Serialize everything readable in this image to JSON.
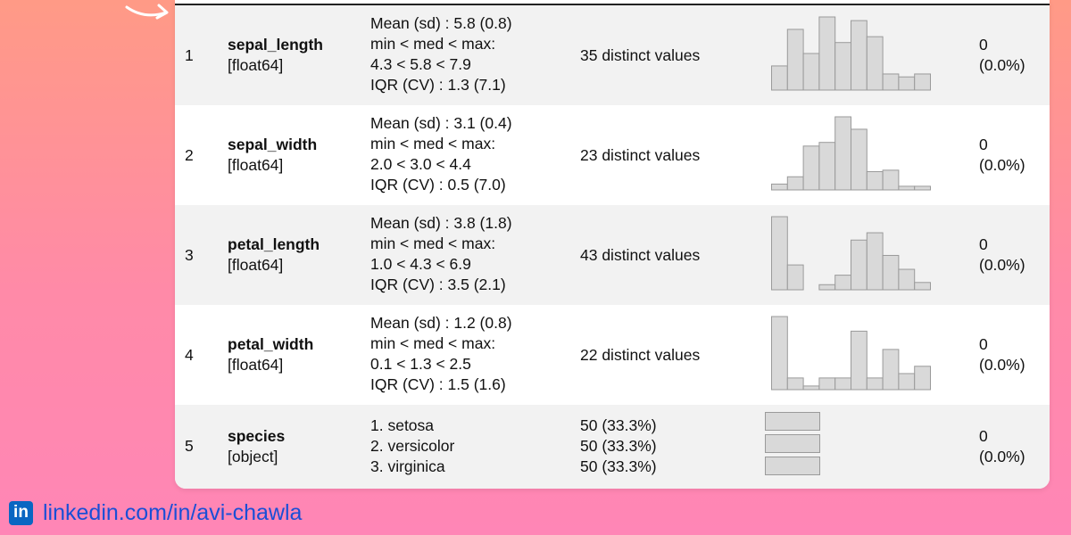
{
  "table": {
    "rows": [
      {
        "index": "1",
        "name": "sepal_length",
        "type": "[float64]",
        "stats": [
          "Mean (sd) : 5.8 (0.8)",
          "min < med < max:",
          "4.3 < 5.8 < 7.9",
          "IQR (CV) : 1.3 (7.1)"
        ],
        "freqs": [
          "35 distinct values"
        ],
        "missing": [
          "0",
          "(0.0%)"
        ],
        "histogram": [
          0.33,
          0.83,
          0.5,
          1.0,
          0.65,
          0.95,
          0.73,
          0.22,
          0.18,
          0.22
        ]
      },
      {
        "index": "2",
        "name": "sepal_width",
        "type": "[float64]",
        "stats": [
          "Mean (sd) : 3.1 (0.4)",
          "min < med < max:",
          "2.0 < 3.0 < 4.4",
          "IQR (CV) : 0.5 (7.0)"
        ],
        "freqs": [
          "23 distinct values"
        ],
        "missing": [
          "0",
          "(0.0%)"
        ],
        "histogram": [
          0.08,
          0.18,
          0.6,
          0.65,
          1.0,
          0.83,
          0.25,
          0.27,
          0.05,
          0.05
        ]
      },
      {
        "index": "3",
        "name": "petal_length",
        "type": "[float64]",
        "stats": [
          "Mean (sd) : 3.8 (1.8)",
          "min < med < max:",
          "1.0 < 4.3 < 6.9",
          "IQR (CV) : 3.5 (2.1)"
        ],
        "freqs": [
          "43 distinct values"
        ],
        "missing": [
          "0",
          "(0.0%)"
        ],
        "histogram": [
          1.0,
          0.34,
          0,
          0.07,
          0.2,
          0.68,
          0.78,
          0.47,
          0.28,
          0.1
        ]
      },
      {
        "index": "4",
        "name": "petal_width",
        "type": "[float64]",
        "stats": [
          "Mean (sd) : 1.2 (0.8)",
          "min < med < max:",
          "0.1 < 1.3 < 2.5",
          "IQR (CV) : 1.5 (1.6)"
        ],
        "freqs": [
          "22 distinct values"
        ],
        "missing": [
          "0",
          "(0.0%)"
        ],
        "histogram": [
          1.0,
          0.16,
          0.05,
          0.16,
          0.16,
          0.8,
          0.16,
          0.55,
          0.22,
          0.32
        ]
      },
      {
        "index": "5",
        "name": "species",
        "type": "[object]",
        "stats": [
          "1. setosa",
          "2. versicolor",
          "3. virginica"
        ],
        "freqs": [
          "50 (33.3%)",
          "50 (33.3%)",
          "50 (33.3%)"
        ],
        "missing": [
          "0",
          "(0.0%)"
        ],
        "category_bars": [
          1.0,
          1.0,
          1.0
        ]
      }
    ]
  },
  "footer": {
    "logo_text": "in",
    "text": "linkedin.com/in/avi-chawla",
    "color": "#1a4fd6"
  },
  "colors": {
    "background_top": "#ff9a86",
    "background_bottom": "#ff86b6",
    "row_shade": "#f2f2f2",
    "bar_fill": "#d9d9d9"
  }
}
